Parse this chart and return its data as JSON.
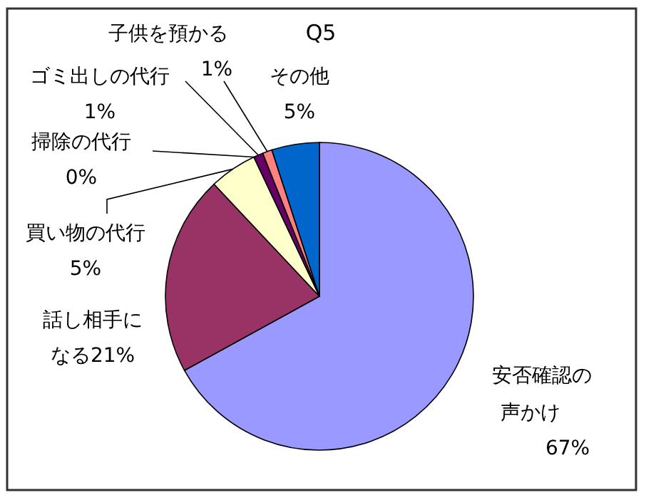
{
  "chart_data": {
    "type": "pie",
    "title": "Q5",
    "categories": [
      "安否確認の声かけ",
      "話し相手になる",
      "買い物の代行",
      "掃除の代行",
      "ゴミ出しの代行",
      "子供を預かる",
      "その他"
    ],
    "values": [
      67,
      21,
      5,
      0,
      1,
      1,
      5
    ],
    "value_labels": [
      "67%",
      "21%",
      "5%",
      "0%",
      "1%",
      "1%",
      "5%"
    ],
    "colors": [
      "#9999ff",
      "#993366",
      "#ffffcc",
      null,
      "#660066",
      "#ff8080",
      "#0066cc"
    ],
    "legend": false
  }
}
